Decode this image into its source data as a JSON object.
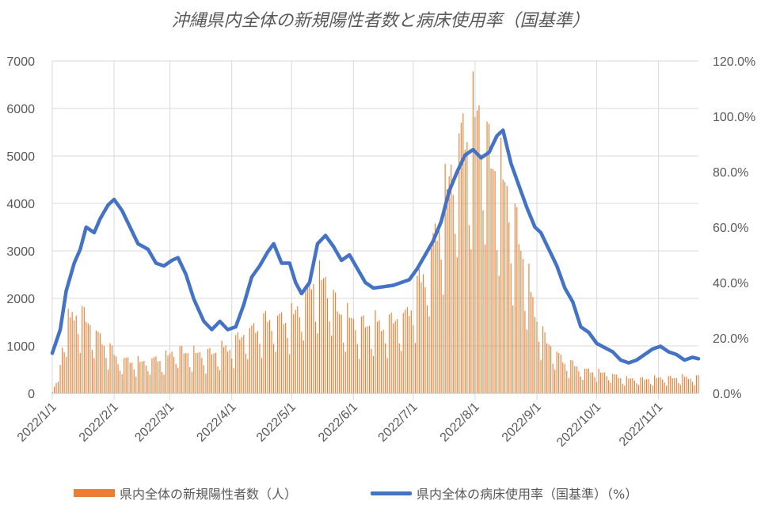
{
  "chart_data": {
    "type": "bar",
    "title": "沖縄県内全体の新規陽性者数と病床使用率（国基準）",
    "date_range": [
      "2022-01-01",
      "2022-11-21"
    ],
    "y_left": {
      "min": 0,
      "max": 7000,
      "step": 1000,
      "ticks": [
        "0",
        "1000",
        "2000",
        "3000",
        "4000",
        "5000",
        "6000",
        "7000"
      ]
    },
    "y_right": {
      "min": 0,
      "max": 120,
      "step": 20,
      "ticks": [
        "0.0%",
        "20.0%",
        "40.0%",
        "60.0%",
        "80.0%",
        "100.0%",
        "120.0%"
      ]
    },
    "x_ticks": [
      {
        "date": "2022-01-01",
        "label": "2022/1/1"
      },
      {
        "date": "2022-02-01",
        "label": "2022/2/1"
      },
      {
        "date": "2022-03-01",
        "label": "2022/3/1"
      },
      {
        "date": "2022-04-01",
        "label": "2022/4/1"
      },
      {
        "date": "2022-05-01",
        "label": "2022/5/1"
      },
      {
        "date": "2022-06-01",
        "label": "2022/6/1"
      },
      {
        "date": "2022-07-01",
        "label": "2022/7/1"
      },
      {
        "date": "2022-08-01",
        "label": "2022/8/1"
      },
      {
        "date": "2022-09-01",
        "label": "2022/9/1"
      },
      {
        "date": "2022-10-01",
        "label": "2022/10/1"
      },
      {
        "date": "2022-11-01",
        "label": "2022/11/1"
      }
    ],
    "grid": true,
    "legend_position": "bottom",
    "series": [
      {
        "name": "県内全体の新規陽性者数（人）",
        "type": "bar",
        "axis": "left",
        "color": "#ED7D31",
        "approx_daily_trend": [
          [
            "2022-01-01",
            60
          ],
          [
            "2022-01-04",
            250
          ],
          [
            "2022-01-07",
            1300
          ],
          [
            "2022-01-10",
            1500
          ],
          [
            "2022-01-13",
            1750
          ],
          [
            "2022-01-17",
            1550
          ],
          [
            "2022-01-22",
            1300
          ],
          [
            "2022-01-28",
            1000
          ],
          [
            "2022-02-03",
            700
          ],
          [
            "2022-02-15",
            650
          ],
          [
            "2022-02-25",
            700
          ],
          [
            "2022-03-05",
            900
          ],
          [
            "2022-03-15",
            800
          ],
          [
            "2022-03-25",
            850
          ],
          [
            "2022-04-01",
            1000
          ],
          [
            "2022-04-10",
            1300
          ],
          [
            "2022-04-20",
            1500
          ],
          [
            "2022-04-30",
            1550
          ],
          [
            "2022-05-07",
            1900
          ],
          [
            "2022-05-12",
            2350
          ],
          [
            "2022-05-18",
            2300
          ],
          [
            "2022-05-25",
            1700
          ],
          [
            "2022-06-01",
            1450
          ],
          [
            "2022-06-10",
            1400
          ],
          [
            "2022-06-20",
            1450
          ],
          [
            "2022-06-28",
            1650
          ],
          [
            "2022-07-05",
            2300
          ],
          [
            "2022-07-12",
            3200
          ],
          [
            "2022-07-20",
            4600
          ],
          [
            "2022-07-26",
            5200
          ],
          [
            "2022-07-30",
            5600
          ],
          [
            "2022-08-03",
            5700
          ],
          [
            "2022-08-08",
            5000
          ],
          [
            "2022-08-15",
            4300
          ],
          [
            "2022-08-22",
            3400
          ],
          [
            "2022-08-29",
            2000
          ],
          [
            "2022-09-05",
            1100
          ],
          [
            "2022-09-15",
            650
          ],
          [
            "2022-09-25",
            480
          ],
          [
            "2022-10-05",
            420
          ],
          [
            "2022-10-15",
            300
          ],
          [
            "2022-10-25",
            300
          ],
          [
            "2022-11-05",
            320
          ],
          [
            "2022-11-21",
            330
          ]
        ]
      },
      {
        "name": "県内全体の病床使用率（国基準）（%）",
        "type": "line",
        "axis": "right",
        "color": "#4472C4",
        "points": [
          [
            "2022-01-01",
            14.5
          ],
          [
            "2022-01-05",
            23
          ],
          [
            "2022-01-08",
            37
          ],
          [
            "2022-01-12",
            47
          ],
          [
            "2022-01-15",
            52
          ],
          [
            "2022-01-18",
            60
          ],
          [
            "2022-01-22",
            58
          ],
          [
            "2022-01-25",
            63
          ],
          [
            "2022-01-29",
            68
          ],
          [
            "2022-02-01",
            70
          ],
          [
            "2022-02-05",
            66
          ],
          [
            "2022-02-09",
            60
          ],
          [
            "2022-02-13",
            54
          ],
          [
            "2022-02-18",
            52
          ],
          [
            "2022-02-22",
            47
          ],
          [
            "2022-02-26",
            46
          ],
          [
            "2022-03-02",
            48
          ],
          [
            "2022-03-05",
            49
          ],
          [
            "2022-03-09",
            43
          ],
          [
            "2022-03-13",
            34
          ],
          [
            "2022-03-18",
            26
          ],
          [
            "2022-03-22",
            23
          ],
          [
            "2022-03-26",
            26
          ],
          [
            "2022-03-30",
            23
          ],
          [
            "2022-04-03",
            24
          ],
          [
            "2022-04-07",
            32
          ],
          [
            "2022-04-11",
            42
          ],
          [
            "2022-04-15",
            46
          ],
          [
            "2022-04-19",
            51
          ],
          [
            "2022-04-22",
            54
          ],
          [
            "2022-04-26",
            47
          ],
          [
            "2022-04-30",
            47
          ],
          [
            "2022-05-03",
            40
          ],
          [
            "2022-05-06",
            36
          ],
          [
            "2022-05-10",
            40
          ],
          [
            "2022-05-14",
            54
          ],
          [
            "2022-05-18",
            57
          ],
          [
            "2022-05-22",
            53
          ],
          [
            "2022-05-26",
            48
          ],
          [
            "2022-05-30",
            50
          ],
          [
            "2022-06-03",
            45
          ],
          [
            "2022-06-07",
            40
          ],
          [
            "2022-06-11",
            38
          ],
          [
            "2022-06-16",
            38.5
          ],
          [
            "2022-06-21",
            39
          ],
          [
            "2022-06-25",
            40
          ],
          [
            "2022-06-29",
            41
          ],
          [
            "2022-07-03",
            45
          ],
          [
            "2022-07-07",
            50
          ],
          [
            "2022-07-11",
            55
          ],
          [
            "2022-07-15",
            62
          ],
          [
            "2022-07-19",
            73
          ],
          [
            "2022-07-23",
            80
          ],
          [
            "2022-07-27",
            86
          ],
          [
            "2022-07-31",
            88
          ],
          [
            "2022-08-04",
            85
          ],
          [
            "2022-08-08",
            87
          ],
          [
            "2022-08-12",
            93
          ],
          [
            "2022-08-15",
            95
          ],
          [
            "2022-08-19",
            83
          ],
          [
            "2022-08-23",
            75
          ],
          [
            "2022-08-27",
            67
          ],
          [
            "2022-08-31",
            60
          ],
          [
            "2022-09-03",
            58
          ],
          [
            "2022-09-07",
            52
          ],
          [
            "2022-09-11",
            46
          ],
          [
            "2022-09-15",
            38
          ],
          [
            "2022-09-19",
            33
          ],
          [
            "2022-09-23",
            24
          ],
          [
            "2022-09-27",
            22
          ],
          [
            "2022-10-01",
            18
          ],
          [
            "2022-10-05",
            16.5
          ],
          [
            "2022-10-09",
            15
          ],
          [
            "2022-10-13",
            12
          ],
          [
            "2022-10-17",
            11
          ],
          [
            "2022-10-21",
            12
          ],
          [
            "2022-10-25",
            14
          ],
          [
            "2022-10-29",
            16
          ],
          [
            "2022-11-02",
            17
          ],
          [
            "2022-11-06",
            15
          ],
          [
            "2022-11-10",
            14
          ],
          [
            "2022-11-14",
            12
          ],
          [
            "2022-11-18",
            13
          ],
          [
            "2022-11-21",
            12.5
          ]
        ]
      }
    ]
  }
}
